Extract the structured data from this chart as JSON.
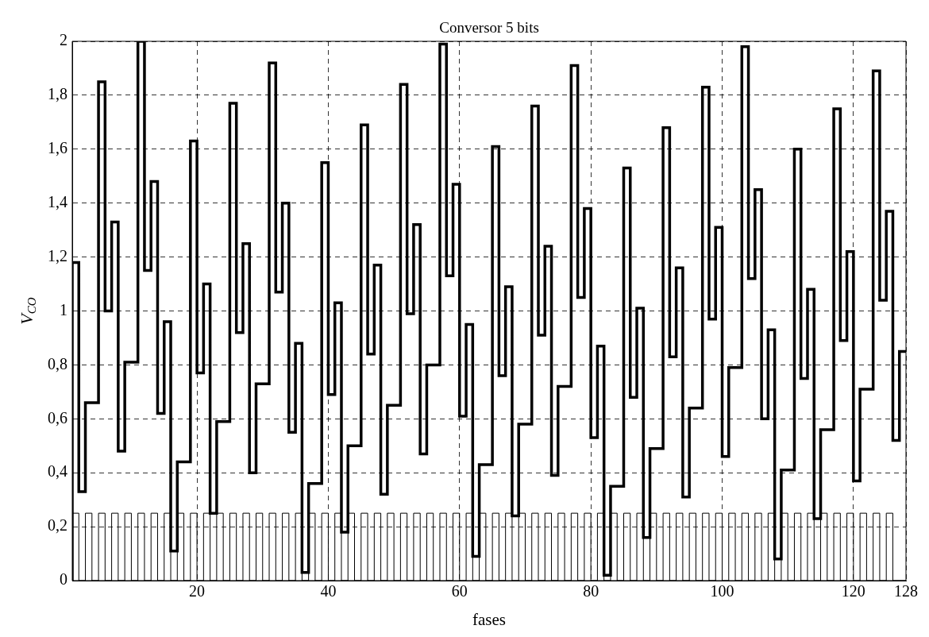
{
  "chart_data": {
    "type": "step",
    "title": "Conversor 5 bits",
    "xlabel": "fases",
    "ylabel": "V$_{CO}$",
    "x": [
      1,
      2,
      3,
      4,
      5,
      6,
      7,
      8,
      9,
      10,
      11,
      12,
      13,
      14,
      15,
      16,
      17,
      18,
      19,
      20,
      21,
      22,
      23,
      24,
      25,
      26,
      27,
      28,
      29,
      30,
      31,
      32,
      33,
      34,
      35,
      36,
      37,
      38,
      39,
      40,
      41,
      42,
      43,
      44,
      45,
      46,
      47,
      48,
      49,
      50,
      51,
      52,
      53,
      54,
      55,
      56,
      57,
      58,
      59,
      60,
      61,
      62,
      63,
      64,
      65,
      66,
      67,
      68,
      69,
      70,
      71,
      72,
      73,
      74,
      75,
      76,
      77,
      78,
      79,
      80,
      81,
      82,
      83,
      84,
      85,
      86,
      87,
      88,
      89,
      90,
      91,
      92,
      93,
      94,
      95,
      96,
      97,
      98,
      99,
      100,
      101,
      102,
      103,
      104,
      105,
      106,
      107,
      108,
      109,
      110,
      111,
      112,
      113,
      114,
      115,
      116,
      117,
      118,
      119,
      120,
      121,
      122,
      123,
      124,
      125,
      126,
      127,
      128
    ],
    "series": [
      {
        "color": "#000000",
        "line_style": "solid",
        "values": [
          0,
          0.25,
          0,
          0.25,
          0,
          0.25,
          0,
          0.25,
          0,
          0.25,
          0,
          0.25,
          0,
          0.25,
          0,
          0.25,
          0,
          0.25,
          0,
          0.25,
          0,
          0.25,
          0,
          0.25,
          0,
          0.25,
          0,
          0.25,
          0,
          0.25,
          0,
          0.25,
          0,
          0.25,
          0,
          0.25,
          0,
          0.25,
          0,
          0.25,
          0,
          0.25,
          0,
          0.25,
          0,
          0.25,
          0,
          0.25,
          0,
          0.25,
          0,
          0.25,
          0,
          0.25,
          0,
          0.25,
          0,
          0.25,
          0,
          0.25,
          0,
          0.25,
          0,
          0.25,
          0,
          0.25,
          0,
          0.25,
          0,
          0.25,
          0,
          0.25,
          0,
          0.25,
          0,
          0.25,
          0,
          0.25,
          0,
          0.25,
          0,
          0.25,
          0,
          0.25,
          0,
          0.25,
          0,
          0.25,
          0,
          0.25,
          0,
          0.25,
          0,
          0.25,
          0,
          0.25,
          0,
          0.25,
          0,
          0.25,
          0,
          0.25,
          0,
          0.25,
          0,
          0.25,
          0,
          0.25,
          0,
          0.25,
          0,
          0.25,
          0,
          0.25,
          0,
          0.25,
          0,
          0.25,
          0,
          0.25,
          0,
          0.25,
          0,
          0.25,
          0,
          0.25,
          0,
          0
        ]
      },
      {
        "color": "#000000",
        "line_style": "solid",
        "values": [
          0,
          1.18,
          0.33,
          0.66,
          0.66,
          1.85,
          1.0,
          1.33,
          0.48,
          0.81,
          0.81,
          2.0,
          1.15,
          1.48,
          0.62,
          0.96,
          0.11,
          0.44,
          0.44,
          1.63,
          0.77,
          1.1,
          0.25,
          0.59,
          0.59,
          1.77,
          0.92,
          1.25,
          0.4,
          0.73,
          0.73,
          1.92,
          1.07,
          1.4,
          0.55,
          0.88,
          0.03,
          0.36,
          0.36,
          1.55,
          0.69,
          1.03,
          0.18,
          0.5,
          0.5,
          1.69,
          0.84,
          1.17,
          0.32,
          0.65,
          0.65,
          1.84,
          0.99,
          1.32,
          0.47,
          0.8,
          0.8,
          1.99,
          1.13,
          1.47,
          0.61,
          0.95,
          0.09,
          0.43,
          0.43,
          1.61,
          0.76,
          1.09,
          0.24,
          0.58,
          0.58,
          1.76,
          0.91,
          1.24,
          0.39,
          0.72,
          0.72,
          1.91,
          1.05,
          1.38,
          0.53,
          0.87,
          0.02,
          0.35,
          0.35,
          1.53,
          0.68,
          1.01,
          0.16,
          0.49,
          0.49,
          1.68,
          0.83,
          1.16,
          0.31,
          0.64,
          0.64,
          1.83,
          0.97,
          1.31,
          0.46,
          0.79,
          0.79,
          1.98,
          1.12,
          1.45,
          0.6,
          0.93,
          0.08,
          0.41,
          0.41,
          1.6,
          0.75,
          1.08,
          0.23,
          0.56,
          0.56,
          1.75,
          0.89,
          1.22,
          0.37,
          0.71,
          0.71,
          1.89,
          1.04,
          1.37,
          0.52,
          0.85
        ]
      }
    ],
    "xlim": [
      1,
      128
    ],
    "xticks": [
      20,
      40,
      60,
      80,
      100,
      120,
      128
    ],
    "ylim": [
      0,
      2
    ],
    "yticks": [
      0,
      {
        "value": 0.2,
        "label": "0,2"
      },
      {
        "value": 0.4,
        "label": "0,4"
      },
      {
        "value": 0.6,
        "label": "0,6"
      },
      {
        "value": 0.8,
        "label": "0,8"
      },
      1,
      {
        "value": 1.2,
        "label": "1,2"
      },
      {
        "value": 1.4,
        "label": "1,4"
      },
      {
        "value": 1.6,
        "label": "1,6"
      },
      {
        "value": 1.8,
        "label": "1,8"
      },
      2
    ],
    "grid": true,
    "legend": false,
    "marker": "none"
  }
}
